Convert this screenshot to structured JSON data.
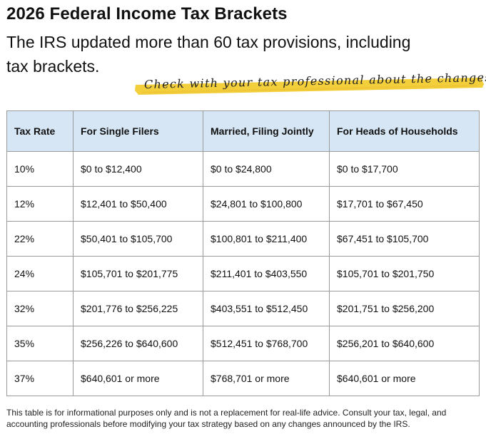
{
  "header": {
    "title": "2026 Federal Income Tax Brackets",
    "subtitle": "The IRS updated more than 60 tax provisions, including tax brackets.",
    "highlight_note": "Check with your tax professional about the changes.",
    "highlight_color": "#f3cf3c"
  },
  "table": {
    "header_color": "#d6e6f5",
    "columns": [
      "Tax Rate",
      "For Single Filers",
      "Married, Filing Jointly",
      "For Heads of Households"
    ],
    "rows": [
      [
        "10%",
        "$0 to $12,400",
        "$0 to $24,800",
        "$0 to $17,700"
      ],
      [
        "12%",
        "$12,401 to $50,400",
        "$24,801 to $100,800",
        "$17,701 to $67,450"
      ],
      [
        "22%",
        "$50,401 to $105,700",
        "$100,801 to $211,400",
        "$67,451 to $105,700"
      ],
      [
        "24%",
        "$105,701 to $201,775",
        "$211,401 to $403,550",
        "$105,701 to $201,750"
      ],
      [
        "32%",
        "$201,776 to $256,225",
        "$403,551 to $512,450",
        "$201,751 to $256,200"
      ],
      [
        "35%",
        "$256,226 to $640,600",
        "$512,451 to $768,700",
        "$256,201 to $640,600"
      ],
      [
        "37%",
        "$640,601 or more",
        "$768,701 or more",
        "$640,601 or more"
      ]
    ]
  },
  "footnote": "This table is for informational purposes only and is not a replacement for real-life advice. Consult your tax, legal, and accounting professionals before modifying your tax strategy based on any changes announced by the IRS."
}
